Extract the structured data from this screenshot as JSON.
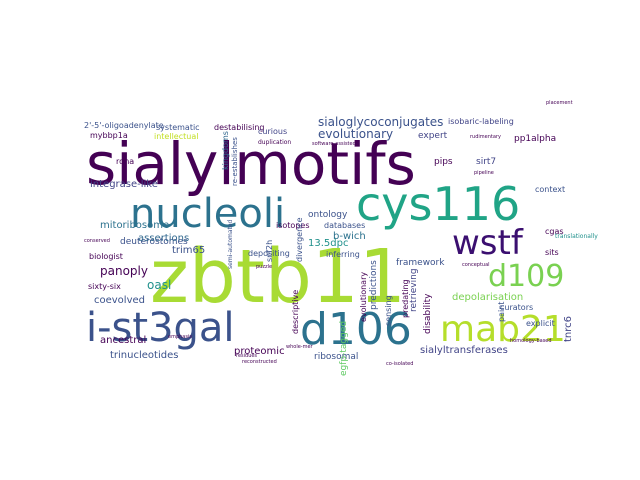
{
  "word_cloud": {
    "colormap": "viridis",
    "words": [
      {
        "text": "zbtb11",
        "color": "#a8db34"
      },
      {
        "text": "sialylmotifs",
        "color": "#440154"
      },
      {
        "text": "cys116",
        "color": "#20a486"
      },
      {
        "text": "nucleoli",
        "color": "#2c728e"
      },
      {
        "text": "wstf",
        "color": "#3b0f70"
      },
      {
        "text": "d106",
        "color": "#2c728e"
      },
      {
        "text": "i-st3gal",
        "color": "#3b528b"
      },
      {
        "text": "mab21",
        "color": "#b5de2b"
      },
      {
        "text": "d109",
        "color": "#7ad151"
      },
      {
        "text": "sialoglycoconjugates",
        "color": "#3b528b"
      },
      {
        "text": "evolutionary",
        "color": "#3b528b"
      },
      {
        "text": "mitoribosome",
        "color": "#2c728e"
      },
      {
        "text": "integrase-like",
        "color": "#414487"
      },
      {
        "text": "deuterostomes",
        "color": "#3b528b"
      },
      {
        "text": "assertions",
        "color": "#31688e"
      },
      {
        "text": "trim65",
        "color": "#3b528b"
      },
      {
        "text": "panoply",
        "color": "#440154"
      },
      {
        "text": "coevolved",
        "color": "#3b528b"
      },
      {
        "text": "oasl",
        "color": "#21918c"
      },
      {
        "text": "ancestral",
        "color": "#440154"
      },
      {
        "text": "trinucleotides",
        "color": "#3b528b"
      },
      {
        "text": "proteomic",
        "color": "#440154"
      },
      {
        "text": "ribosomal",
        "color": "#3b528b"
      },
      {
        "text": "sialyltransferases",
        "color": "#414487"
      },
      {
        "text": "depolarisation",
        "color": "#7ad151"
      },
      {
        "text": "b-wich",
        "color": "#2c728e"
      },
      {
        "text": "13.5dpc",
        "color": "#21918c"
      },
      {
        "text": "systematic",
        "color": "#3b528b"
      },
      {
        "text": "destabilising",
        "color": "#440154"
      },
      {
        "text": "2'-5'-oligoadenylate",
        "color": "#3b528b"
      },
      {
        "text": "intellectual",
        "color": "#c2df23"
      },
      {
        "text": "mybbp1a",
        "color": "#440154"
      },
      {
        "text": "curious",
        "color": "#414487"
      },
      {
        "text": "kingdoms",
        "color": "#31688e"
      },
      {
        "text": "expert",
        "color": "#414487"
      },
      {
        "text": "pips",
        "color": "#440154"
      },
      {
        "text": "sirt7",
        "color": "#414487"
      },
      {
        "text": "pp1alpha",
        "color": "#440154"
      },
      {
        "text": "context",
        "color": "#3b528b"
      },
      {
        "text": "cgas",
        "color": "#440154"
      },
      {
        "text": "tnrc6",
        "color": "#414487"
      },
      {
        "text": "framework",
        "color": "#3b528b"
      },
      {
        "text": "ontology",
        "color": "#3b528b"
      },
      {
        "text": "databases",
        "color": "#3b528b"
      },
      {
        "text": "depositing",
        "color": "#3b528b"
      },
      {
        "text": "inferring",
        "color": "#3b528b"
      },
      {
        "text": "predictions",
        "color": "#3b528b"
      },
      {
        "text": "retrieving",
        "color": "#414487"
      },
      {
        "text": "predating",
        "color": "#440154"
      },
      {
        "text": "sensing",
        "color": "#3b528b"
      },
      {
        "text": "paint",
        "color": "#3b528b"
      },
      {
        "text": "curators",
        "color": "#3b528b"
      },
      {
        "text": "explicit",
        "color": "#3b528b"
      },
      {
        "text": "sits",
        "color": "#440154"
      },
      {
        "text": "biologist",
        "color": "#440154"
      },
      {
        "text": "sixty-six",
        "color": "#440154"
      },
      {
        "text": "rdna",
        "color": "#440154"
      },
      {
        "text": "isotopes",
        "color": "#440154"
      },
      {
        "text": "divergence",
        "color": "#3b528b"
      },
      {
        "text": "descriptive",
        "color": "#440154"
      },
      {
        "text": "disability",
        "color": "#440154"
      },
      {
        "text": "isobaric-labeling",
        "color": "#414487"
      },
      {
        "text": "evolutionary",
        "color": "#440154"
      },
      {
        "text": "re-establishes",
        "color": "#3b528b"
      },
      {
        "text": "snf2h",
        "color": "#3b528b"
      },
      {
        "text": "egfp-tagged",
        "color": "#5ec962"
      },
      {
        "text": "duplication",
        "color": "#440154"
      },
      {
        "text": "semi-automated",
        "color": "#3b528b"
      },
      {
        "text": "software-assisted",
        "color": "#440154"
      },
      {
        "text": "rudimentary",
        "color": "#440154"
      },
      {
        "text": "placement",
        "color": "#440154"
      },
      {
        "text": "homology-based",
        "color": "#440154"
      },
      {
        "text": "reconstructed",
        "color": "#440154"
      },
      {
        "text": "co-isolated",
        "color": "#440154"
      },
      {
        "text": "whole-mer",
        "color": "#440154"
      },
      {
        "text": "emphasis",
        "color": "#440154"
      },
      {
        "text": "translationally",
        "color": "#21918c"
      },
      {
        "text": "conceptual",
        "color": "#440154"
      },
      {
        "text": "pipeline",
        "color": "#440154"
      },
      {
        "text": "conserved",
        "color": "#440154"
      },
      {
        "text": "puzzle",
        "color": "#440154"
      },
      {
        "text": "residues",
        "color": "#440154"
      }
    ]
  }
}
